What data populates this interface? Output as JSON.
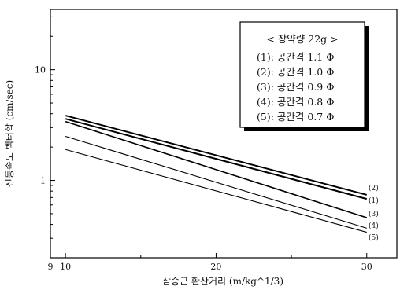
{
  "chart_data": {
    "type": "line",
    "xlabel": "삼승근 환산거리 (m/kg^1/3)",
    "ylabel": "진동속도 벡터합 (cm/sec)",
    "x_ticks": [
      "9",
      "10",
      "20",
      "30"
    ],
    "y_ticks": [
      "1",
      "10"
    ],
    "xlim": [
      9,
      32
    ],
    "ylim": [
      0.2,
      35
    ],
    "y_scale": "log",
    "legend": {
      "title": "< 장약량 22g >",
      "position": "top-right",
      "entries": [
        "(1): 공간격 1.1 Φ",
        "(2): 공간격 1.0 Φ",
        "(3): 공간격 0.9 Φ",
        "(4): 공간격 0.8 Φ",
        "(5): 공간격 0.7 Φ"
      ]
    },
    "series": [
      {
        "name": "(1)",
        "x": [
          10,
          30
        ],
        "y": [
          3.6,
          0.68
        ]
      },
      {
        "name": "(2)",
        "x": [
          10,
          30
        ],
        "y": [
          3.85,
          0.74
        ]
      },
      {
        "name": "(3)",
        "x": [
          10,
          30
        ],
        "y": [
          3.4,
          0.46
        ]
      },
      {
        "name": "(4)",
        "x": [
          10,
          30
        ],
        "y": [
          2.5,
          0.37
        ]
      },
      {
        "name": "(5)",
        "x": [
          10,
          30
        ],
        "y": [
          1.9,
          0.34
        ]
      }
    ],
    "end_labels": [
      "(2)",
      "(1)",
      "(3)",
      "(4)",
      "(5)"
    ],
    "grid": false
  }
}
